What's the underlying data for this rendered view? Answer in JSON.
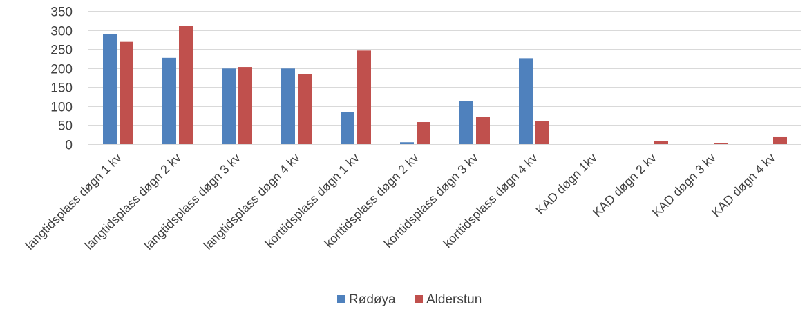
{
  "chart_data": {
    "type": "bar",
    "title": "",
    "xlabel": "",
    "ylabel": "",
    "ylim": [
      0,
      350
    ],
    "yticks": [
      0,
      50,
      100,
      150,
      200,
      250,
      300,
      350
    ],
    "grid": true,
    "legend_position": "bottom",
    "categories": [
      "langtidsplass døgn 1 kv",
      "langtidsplass døgn 2 kv",
      "langtidsplass døgn 3 kv",
      "langtidsplass døgn 4 kv",
      "korttidsplass døgn 1 kv",
      "korttidsplass døgn 2 kv",
      "korttidsplass døgn 3 kv",
      "korttidsplass døgn 4 kv",
      "KAD døgn 1kv",
      "KAD døgn 2 kv",
      "KAD døgn 3 kv",
      "KAD døgn 4 kv"
    ],
    "series": [
      {
        "name": "Rødøya",
        "color": "#4f81bd",
        "values": [
          290,
          227,
          199,
          199,
          84,
          5,
          114,
          226,
          0,
          0,
          0,
          0
        ]
      },
      {
        "name": "Alderstun",
        "color": "#c0504d",
        "values": [
          269,
          311,
          203,
          184,
          246,
          58,
          71,
          61,
          0,
          8,
          3,
          20
        ]
      }
    ]
  }
}
